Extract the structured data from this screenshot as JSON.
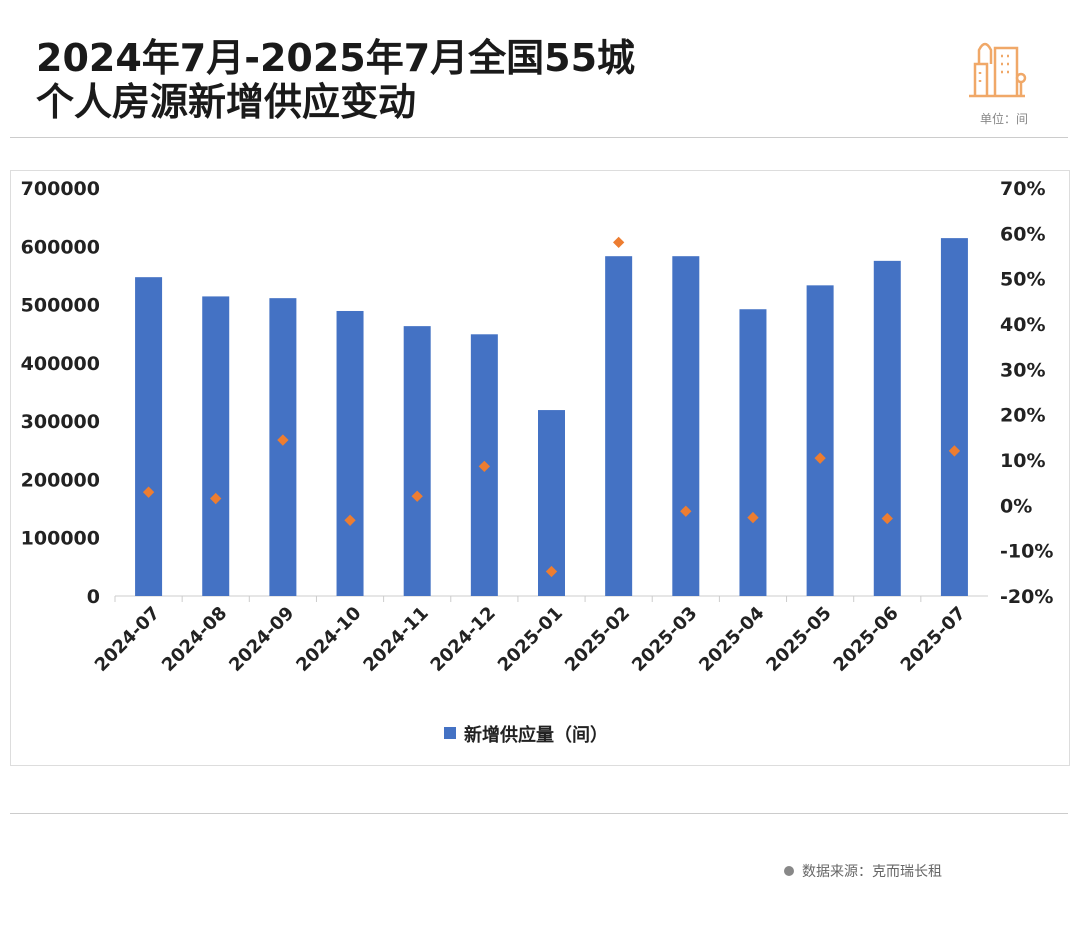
{
  "header": {
    "title_line1": "2024年7月-2025年7月全国55城",
    "title_line2": "个人房源新增供应变动",
    "unit": "单位：间",
    "icon": "city-buildings-icon"
  },
  "source": "数据来源：克而瑞长租",
  "colors": {
    "bar": "#4472C4",
    "dot": "#ED7D31",
    "icon": "#F0A868"
  },
  "chart_data": {
    "type": "bar",
    "categories": [
      "2024-07",
      "2024-08",
      "2024-09",
      "2024-10",
      "2024-11",
      "2024-12",
      "2025-01",
      "2025-02",
      "2025-03",
      "2025-04",
      "2025-05",
      "2025-06",
      "2025-07"
    ],
    "series": [
      {
        "name": "新增供应量（间）",
        "type": "bar",
        "axis": "left",
        "values": [
          547000,
          514000,
          511000,
          489000,
          463000,
          449000,
          319000,
          583000,
          583000,
          492000,
          533000,
          575000,
          614000
        ]
      },
      {
        "type": "scatter",
        "axis": "right",
        "values": [
          2.9,
          1.5,
          14.4,
          -3.3,
          2.0,
          8.6,
          -14.6,
          58.0,
          -1.3,
          -2.7,
          10.4,
          -2.9,
          12.0
        ]
      }
    ],
    "ylim_left": [
      0,
      700000
    ],
    "yticks_left": [
      "0",
      "100000",
      "200000",
      "300000",
      "400000",
      "500000",
      "600000",
      "700000"
    ],
    "ylim_right": [
      -20,
      70
    ],
    "yticks_right": [
      "-20%",
      "-10%",
      "0%",
      "10%",
      "20%",
      "30%",
      "40%",
      "50%",
      "60%",
      "70%"
    ],
    "legend": "bottom",
    "grid": false
  }
}
